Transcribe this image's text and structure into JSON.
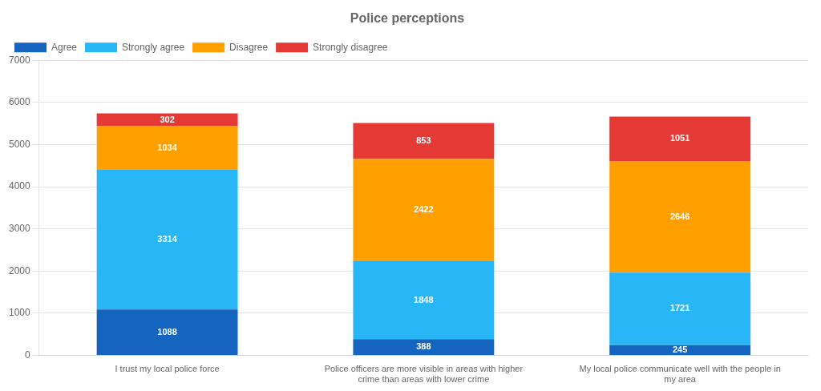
{
  "chart_data": {
    "type": "bar",
    "title": "Police perceptions",
    "categories": [
      "I trust my local police force",
      "Police officers are more visible in areas with higher\ncrime than areas with lower crime",
      "My local police communicate well with the people in\nmy area"
    ],
    "series": [
      {
        "name": "Agree",
        "color": "#1565C0",
        "values": [
          1088,
          388,
          245
        ]
      },
      {
        "name": "Strongly agree",
        "color": "#29B6F6",
        "values": [
          3314,
          1848,
          1721
        ]
      },
      {
        "name": "Disagree",
        "color": "#FFA000",
        "values": [
          1034,
          2422,
          2646
        ]
      },
      {
        "name": "Strongly disagree",
        "color": "#E53935",
        "values": [
          302,
          853,
          1051
        ]
      }
    ],
    "stacked": true,
    "ylim": [
      0,
      7000
    ],
    "yticks": [
      0,
      1000,
      2000,
      3000,
      4000,
      5000,
      6000,
      7000
    ],
    "grid": true,
    "legend": "upper left",
    "data_labels": true
  }
}
